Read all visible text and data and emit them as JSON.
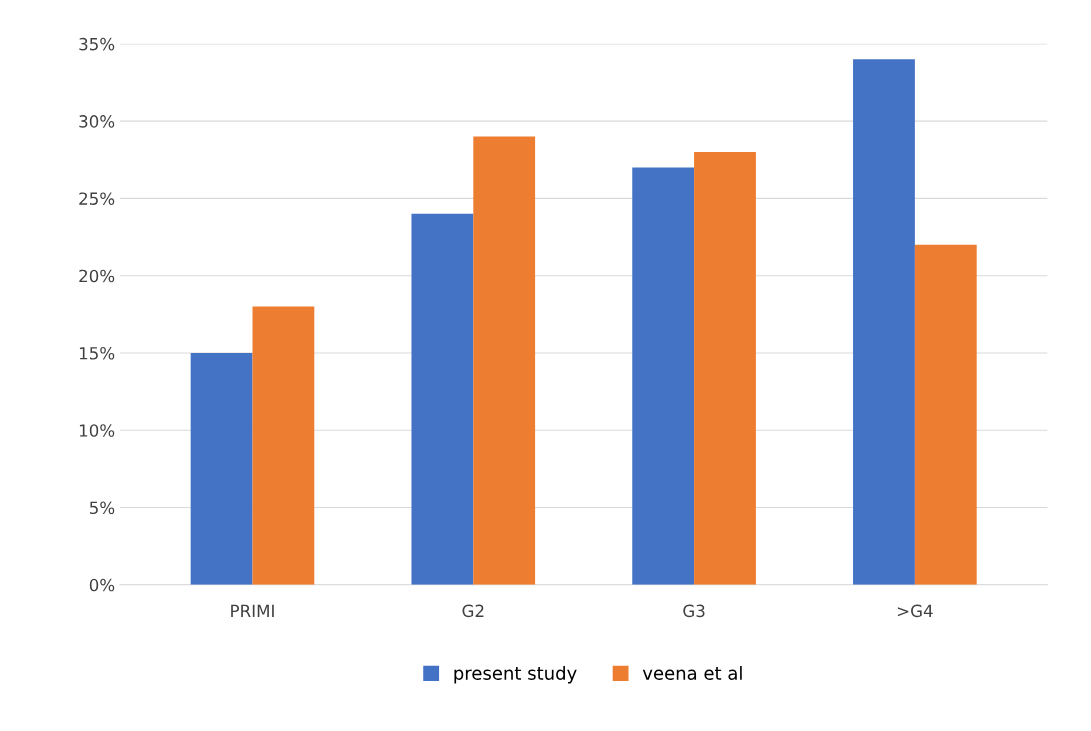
{
  "chart_data": {
    "type": "bar",
    "categories": [
      "PRIMI",
      "G2",
      "G3",
      ">G4"
    ],
    "series": [
      {
        "name": "present study",
        "color": "#4472c4",
        "values": [
          15,
          24,
          27,
          34
        ]
      },
      {
        "name": "veena et al",
        "color": "#ed7d31",
        "values": [
          18,
          29,
          28,
          22
        ]
      }
    ],
    "ylim": [
      0,
      35
    ],
    "yticks": [
      {
        "value": 0,
        "label": "0%"
      },
      {
        "value": 5,
        "label": "5%"
      },
      {
        "value": 10,
        "label": "10%"
      },
      {
        "value": 15,
        "label": "15%"
      },
      {
        "value": 20,
        "label": "20%"
      },
      {
        "value": 25,
        "label": "25%"
      },
      {
        "value": 30,
        "label": "30%"
      },
      {
        "value": 35,
        "label": "35%"
      }
    ],
    "grid": "y",
    "legend": "bottom"
  }
}
